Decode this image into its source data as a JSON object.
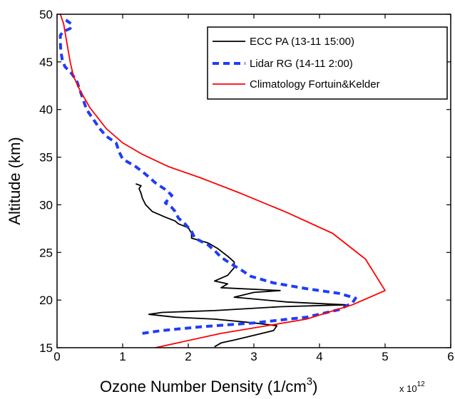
{
  "chart_data": {
    "type": "line",
    "xlabel_main": "Ozone Number Density (1/cm",
    "xlabel_sup": "3",
    "xlabel_close": ")",
    "x_multiplier_base": "x 10",
    "x_multiplier_exp": "12",
    "ylabel": "Altitude (km)",
    "xlim": [
      0,
      6
    ],
    "ylim": [
      15,
      50
    ],
    "xticks": [
      "0",
      "1",
      "2",
      "3",
      "4",
      "5",
      "6"
    ],
    "yticks": [
      "15",
      "20",
      "25",
      "30",
      "35",
      "40",
      "45",
      "50"
    ],
    "legend_position": "top-right",
    "series": [
      {
        "name": "ECC PA (13-11 15:00)",
        "color": "#000000",
        "style": "solid",
        "points": [
          [
            2.4,
            15.1
          ],
          [
            2.5,
            15.5
          ],
          [
            2.7,
            15.8
          ],
          [
            3.0,
            16.3
          ],
          [
            3.3,
            16.8
          ],
          [
            3.35,
            17.3
          ],
          [
            3.0,
            17.6
          ],
          [
            2.4,
            18.0
          ],
          [
            1.8,
            18.2
          ],
          [
            1.4,
            18.5
          ],
          [
            1.6,
            18.7
          ],
          [
            2.4,
            18.9
          ],
          [
            3.4,
            19.3
          ],
          [
            4.4,
            19.5
          ],
          [
            3.5,
            19.8
          ],
          [
            2.7,
            20.3
          ],
          [
            3.0,
            20.8
          ],
          [
            3.4,
            21.0
          ],
          [
            2.5,
            21.3
          ],
          [
            2.6,
            21.7
          ],
          [
            2.4,
            22.0
          ],
          [
            2.6,
            22.6
          ],
          [
            2.7,
            23.4
          ],
          [
            2.7,
            24.0
          ],
          [
            2.6,
            24.6
          ],
          [
            2.45,
            25.4
          ],
          [
            2.3,
            26.0
          ],
          [
            2.05,
            26.5
          ],
          [
            2.05,
            27.0
          ],
          [
            2.0,
            27.6
          ],
          [
            1.85,
            28.0
          ],
          [
            1.8,
            28.3
          ],
          [
            1.65,
            28.7
          ],
          [
            1.45,
            29.3
          ],
          [
            1.35,
            30.0
          ],
          [
            1.3,
            30.7
          ],
          [
            1.28,
            31.2
          ],
          [
            1.25,
            31.7
          ],
          [
            1.28,
            32.0
          ],
          [
            1.2,
            32.2
          ]
        ]
      },
      {
        "name": "Lidar RG (14-11 2:00)",
        "color": "#1f3df5",
        "style": "dashed",
        "points": [
          [
            1.3,
            16.5
          ],
          [
            1.6,
            16.8
          ],
          [
            2.2,
            17.2
          ],
          [
            3.0,
            17.6
          ],
          [
            3.8,
            18.2
          ],
          [
            4.3,
            19.0
          ],
          [
            4.5,
            19.7
          ],
          [
            4.55,
            20.2
          ],
          [
            4.3,
            20.7
          ],
          [
            3.8,
            21.2
          ],
          [
            3.3,
            21.8
          ],
          [
            2.95,
            22.5
          ],
          [
            2.8,
            23.2
          ],
          [
            2.65,
            23.8
          ],
          [
            2.5,
            24.5
          ],
          [
            2.4,
            25.2
          ],
          [
            2.3,
            25.8
          ],
          [
            2.1,
            26.5
          ],
          [
            2.05,
            27.2
          ],
          [
            1.95,
            28.0
          ],
          [
            1.85,
            28.6
          ],
          [
            1.8,
            29.3
          ],
          [
            1.75,
            29.7
          ],
          [
            1.65,
            30.2
          ],
          [
            1.7,
            30.6
          ],
          [
            1.75,
            31.0
          ],
          [
            1.65,
            31.6
          ],
          [
            1.5,
            32.3
          ],
          [
            1.35,
            33.2
          ],
          [
            1.2,
            34.0
          ],
          [
            1.0,
            34.8
          ],
          [
            0.95,
            35.5
          ],
          [
            0.9,
            36.5
          ],
          [
            0.75,
            37.2
          ],
          [
            0.65,
            38.0
          ],
          [
            0.55,
            39.0
          ],
          [
            0.45,
            40.0
          ],
          [
            0.4,
            41.0
          ],
          [
            0.35,
            42.0
          ],
          [
            0.3,
            43.0
          ],
          [
            0.22,
            43.8
          ],
          [
            0.12,
            44.5
          ],
          [
            0.08,
            45.2
          ],
          [
            0.06,
            46.0
          ],
          [
            0.05,
            47.0
          ],
          [
            0.05,
            47.8
          ],
          [
            0.1,
            48.2
          ],
          [
            0.2,
            48.5
          ],
          [
            0.22,
            49.0
          ],
          [
            0.15,
            49.3
          ],
          [
            0.18,
            49.6
          ]
        ]
      },
      {
        "name": "Climatology Fortuin&Kelder",
        "color": "#ff0000",
        "style": "solid",
        "points": [
          [
            1.5,
            15.0
          ],
          [
            2.5,
            16.5
          ],
          [
            3.8,
            18.0
          ],
          [
            4.5,
            19.5
          ],
          [
            5.0,
            21.0
          ],
          [
            4.7,
            24.3
          ],
          [
            4.2,
            27.0
          ],
          [
            3.5,
            29.2
          ],
          [
            2.8,
            31.2
          ],
          [
            2.2,
            32.8
          ],
          [
            1.7,
            34.0
          ],
          [
            1.3,
            35.3
          ],
          [
            1.0,
            36.5
          ],
          [
            0.75,
            38.0
          ],
          [
            0.5,
            40.2
          ],
          [
            0.35,
            42.0
          ],
          [
            0.25,
            43.5
          ],
          [
            0.2,
            45.0
          ],
          [
            0.15,
            47.0
          ],
          [
            0.1,
            49.0
          ],
          [
            0.05,
            50.0
          ]
        ]
      }
    ]
  }
}
